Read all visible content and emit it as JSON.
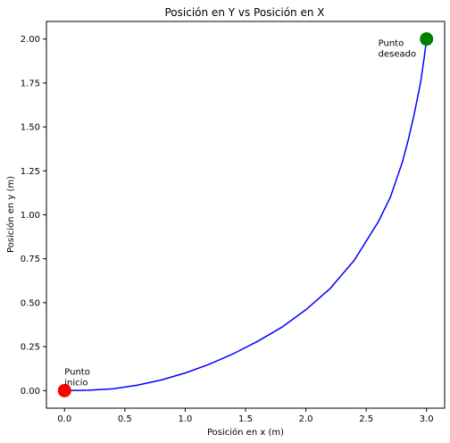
{
  "chart_data": {
    "type": "line",
    "title": "Posición en Y vs Posición en X",
    "xlabel": "Posición en x (m)",
    "ylabel": "Posición en y (m)",
    "xlim": [
      -0.15,
      3.15
    ],
    "ylim": [
      -0.1,
      2.1
    ],
    "xticks": [
      0.0,
      0.5,
      1.0,
      1.5,
      2.0,
      2.5,
      3.0
    ],
    "xtick_labels": [
      "0.0",
      "0.5",
      "1.0",
      "1.5",
      "2.0",
      "2.5",
      "3.0"
    ],
    "yticks": [
      0.0,
      0.25,
      0.5,
      0.75,
      1.0,
      1.25,
      1.5,
      1.75,
      2.0
    ],
    "ytick_labels": [
      "0.00",
      "0.25",
      "0.50",
      "0.75",
      "1.00",
      "1.25",
      "1.50",
      "1.75",
      "2.00"
    ],
    "grid": false,
    "series": [
      {
        "color": "#0000ff",
        "x": [
          0.0,
          0.2,
          0.4,
          0.6,
          0.8,
          1.0,
          1.2,
          1.4,
          1.6,
          1.8,
          2.0,
          2.2,
          2.4,
          2.6,
          2.7,
          2.8,
          2.85,
          2.9,
          2.95,
          2.98,
          3.0
        ],
        "y": [
          0.0,
          0.002,
          0.01,
          0.03,
          0.06,
          0.1,
          0.15,
          0.21,
          0.28,
          0.36,
          0.46,
          0.58,
          0.74,
          0.96,
          1.1,
          1.3,
          1.43,
          1.58,
          1.75,
          1.89,
          2.0
        ]
      }
    ],
    "markers": [
      {
        "name": "start",
        "x": 0.0,
        "y": 0.0,
        "color": "#ff0000"
      },
      {
        "name": "goal",
        "x": 3.0,
        "y": 2.0,
        "color": "#008000"
      }
    ],
    "annotations": [
      {
        "lines": [
          "Punto",
          "inicio"
        ],
        "x": 0.0,
        "y": 0.03
      },
      {
        "lines": [
          "Punto",
          "deseado"
        ],
        "x": 2.6,
        "y": 1.9
      }
    ]
  }
}
